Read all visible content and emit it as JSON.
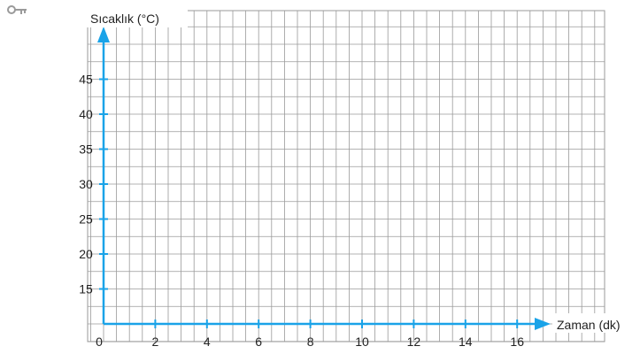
{
  "key_icon": "key-icon",
  "chart_data": {
    "type": "line",
    "title": "",
    "xlabel": "Zaman (dk)",
    "ylabel": "Sıcaklık (°C)",
    "x_ticks": [
      0,
      2,
      4,
      6,
      8,
      10,
      12,
      14,
      16
    ],
    "y_ticks": [
      15,
      20,
      25,
      30,
      35,
      40,
      45
    ],
    "origin_label": "0",
    "xlim": [
      0,
      20
    ],
    "ylim": [
      10,
      52.5
    ],
    "grid": true,
    "series": [],
    "colors": {
      "axis": "#1aa3e8",
      "grid": "#9a9a9a",
      "key": "#9a9a9a"
    }
  }
}
